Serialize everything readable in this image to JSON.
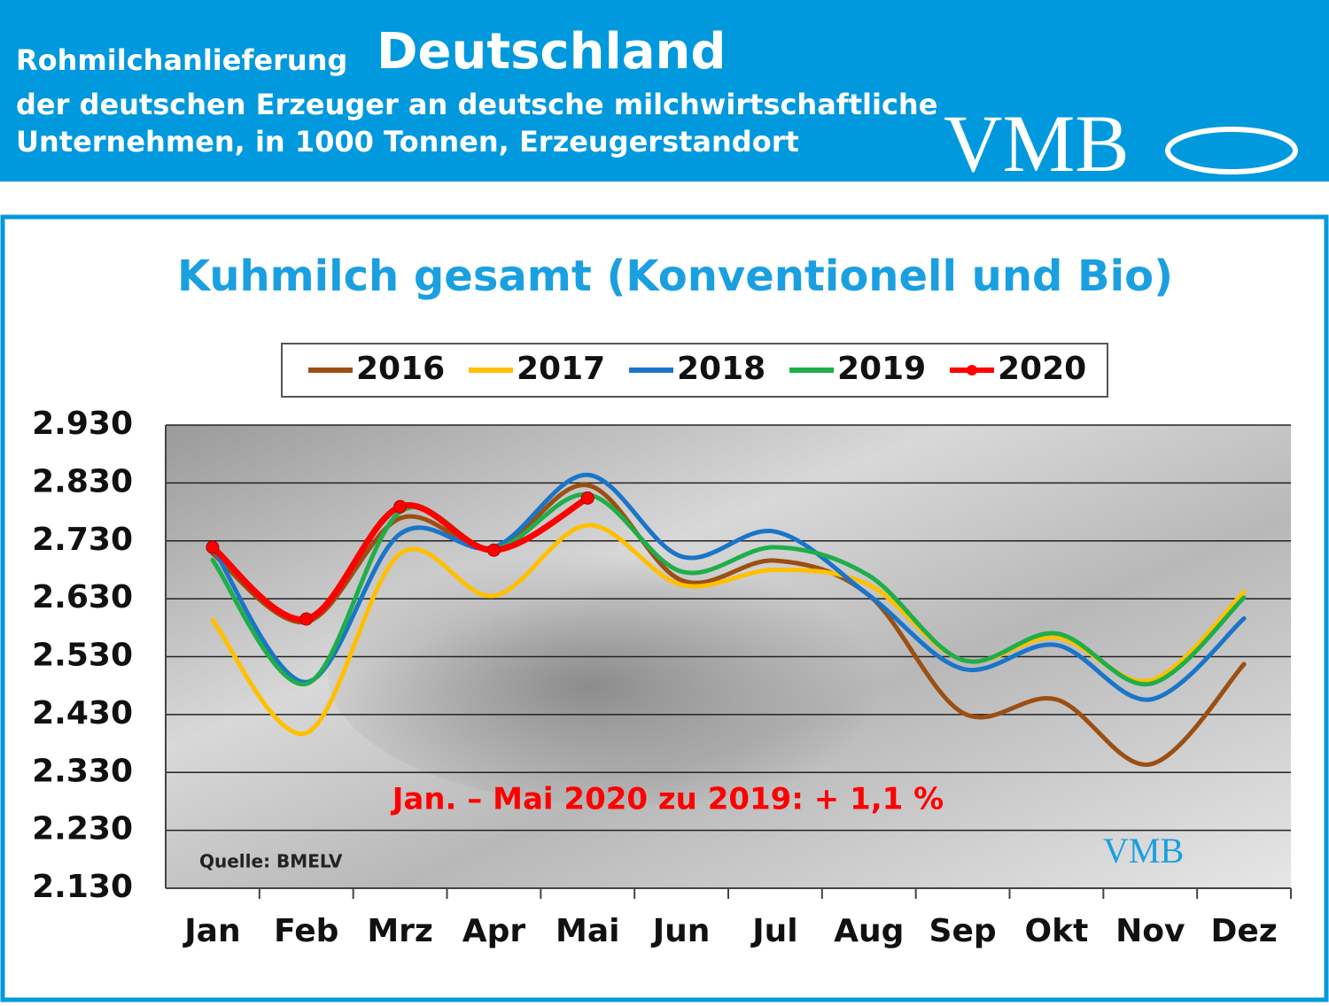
{
  "header": {
    "title_small": "Rohmilchanlieferung",
    "title_large": "Deutschland",
    "line2": "der deutschen Erzeuger an deutsche milchwirtschaftliche",
    "line3": "Unternehmen, in 1000 Tonnen, Erzeugerstandort",
    "logo": "VMB"
  },
  "chart_data": {
    "type": "line",
    "title": "Kuhmilch gesamt (Konventionell und Bio)",
    "categories": [
      "Jan",
      "Feb",
      "Mrz",
      "Apr",
      "Mai",
      "Jun",
      "Jul",
      "Aug",
      "Sep",
      "Okt",
      "Nov",
      "Dez"
    ],
    "series": [
      {
        "name": "2016",
        "color": "#9c4f12",
        "values": [
          2708,
          2590,
          2769,
          2716,
          2826,
          2662,
          2696,
          2636,
          2433,
          2456,
          2344,
          2517
        ]
      },
      {
        "name": "2017",
        "color": "#ffc000",
        "values": [
          2593,
          2398,
          2708,
          2635,
          2757,
          2654,
          2680,
          2654,
          2524,
          2563,
          2489,
          2642
        ]
      },
      {
        "name": "2018",
        "color": "#1a75c8",
        "values": [
          2719,
          2486,
          2742,
          2719,
          2844,
          2703,
          2746,
          2636,
          2509,
          2550,
          2456,
          2596
        ]
      },
      {
        "name": "2019",
        "color": "#1fae4a",
        "values": [
          2697,
          2483,
          2780,
          2716,
          2810,
          2677,
          2719,
          2670,
          2524,
          2570,
          2483,
          2632
        ]
      },
      {
        "name": "2020",
        "color": "#ff0000",
        "values": [
          2719,
          2595,
          2789,
          2714,
          2804,
          null,
          null,
          null,
          null,
          null,
          null,
          null
        ],
        "markers": true
      }
    ],
    "ylim": [
      2130,
      2930
    ],
    "yticks": [
      {
        "value": 2130,
        "label": "2.130"
      },
      {
        "value": 2230,
        "label": "2.230"
      },
      {
        "value": 2330,
        "label": "2.330"
      },
      {
        "value": 2430,
        "label": "2.430"
      },
      {
        "value": 2530,
        "label": "2.530"
      },
      {
        "value": 2630,
        "label": "2.630"
      },
      {
        "value": 2730,
        "label": "2.730"
      },
      {
        "value": 2830,
        "label": "2.830"
      },
      {
        "value": 2930,
        "label": "2.930"
      }
    ],
    "grid": true,
    "legend": "top",
    "annotations": [
      "Jan. – Mai 2020 zu 2019: + 1,1 %",
      "Quelle: BMELV"
    ]
  }
}
